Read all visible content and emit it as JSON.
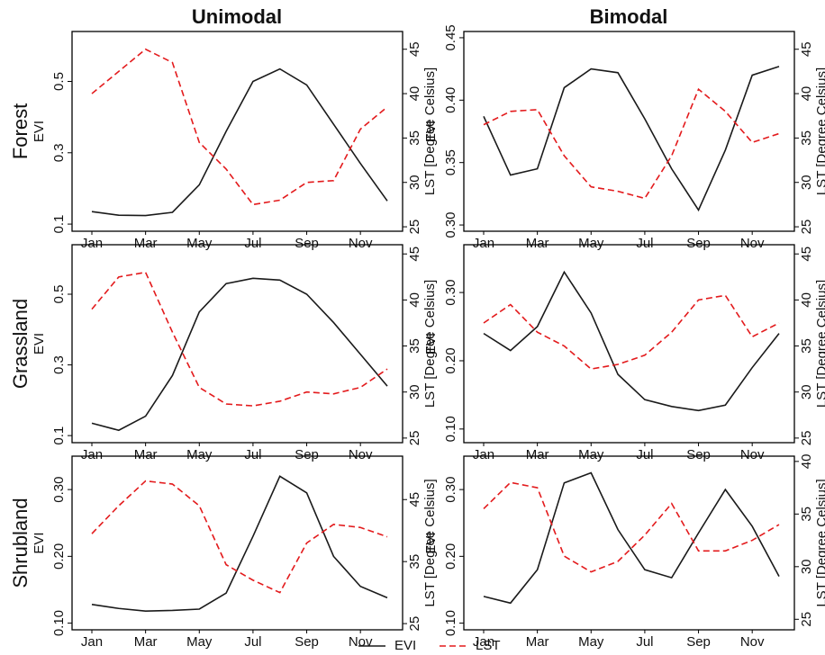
{
  "columns": [
    "Unimodal",
    "Bimodal"
  ],
  "rows": [
    "Forest",
    "Grassland",
    "Shrubland"
  ],
  "legend": [
    {
      "name": "EVI",
      "color": "#1a1a1a",
      "line_style": "solid"
    },
    {
      "name": "LST",
      "color": "#e31a1c",
      "line_style": "dashed"
    }
  ],
  "chart_data": [
    {
      "type": "line",
      "ylabel": "EVI",
      "y2label": "LST [Degree Celsius]",
      "categories": [
        "Jan",
        null,
        "Mar",
        null,
        "May",
        null,
        "Jul",
        null,
        "Sep",
        null,
        "Nov",
        null
      ],
      "ylim": [
        0.08,
        0.64
      ],
      "yticks": [
        0.1,
        0.3,
        0.5
      ],
      "y2lim": [
        24.5,
        47
      ],
      "y2ticks": [
        25,
        30,
        35,
        40,
        45
      ],
      "series": [
        {
          "color": "#1a1a1a",
          "line_style": "solid",
          "values": [
            0.135,
            0.125,
            0.124,
            0.133,
            0.21,
            0.36,
            0.5,
            0.535,
            0.49,
            0.38,
            0.27,
            0.165
          ]
        },
        {
          "color": "#e31a1c",
          "line_style": "dashed",
          "axis": "y2",
          "values": [
            40,
            42.5,
            45,
            43.5,
            34.5,
            31.5,
            27.5,
            28,
            30,
            30.2,
            36,
            38.5
          ]
        }
      ]
    },
    {
      "type": "line",
      "ylabel": "EVI",
      "y2label": "LST [Degree Celsius]",
      "categories": [
        "Jan",
        null,
        "Mar",
        null,
        "May",
        null,
        "Jul",
        null,
        "Sep",
        null,
        "Nov",
        null
      ],
      "ylim": [
        0.295,
        0.455
      ],
      "yticks": [
        {
          "value": 0.3,
          "label": "0.30"
        },
        0.35,
        {
          "value": 0.4,
          "label": "0.40"
        },
        0.45
      ],
      "y2lim": [
        24.5,
        47
      ],
      "y2ticks": [
        25,
        30,
        35,
        40,
        45
      ],
      "series": [
        {
          "color": "#1a1a1a",
          "line_style": "solid",
          "values": [
            0.387,
            0.34,
            0.345,
            0.41,
            0.425,
            0.422,
            0.385,
            0.345,
            0.312,
            0.36,
            0.42,
            0.427
          ]
        },
        {
          "color": "#e31a1c",
          "line_style": "dashed",
          "axis": "y2",
          "values": [
            36.5,
            38,
            38.2,
            33,
            29.5,
            29,
            28.2,
            33,
            40.5,
            38,
            34.5,
            35.5
          ]
        }
      ]
    },
    {
      "type": "line",
      "ylabel": "EVI",
      "y2label": "LST [Degree Celsius]",
      "categories": [
        "Jan",
        null,
        "Mar",
        null,
        "May",
        null,
        "Jul",
        null,
        "Sep",
        null,
        "Nov",
        null
      ],
      "ylim": [
        0.08,
        0.64
      ],
      "yticks": [
        0.1,
        0.3,
        0.5
      ],
      "y2lim": [
        24.5,
        46
      ],
      "y2ticks": [
        25,
        30,
        35,
        40,
        45
      ],
      "series": [
        {
          "color": "#1a1a1a",
          "line_style": "solid",
          "values": [
            0.135,
            0.115,
            0.155,
            0.27,
            0.45,
            0.53,
            0.545,
            0.54,
            0.5,
            0.42,
            0.33,
            0.24
          ]
        },
        {
          "color": "#e31a1c",
          "line_style": "dashed",
          "axis": "y2",
          "values": [
            39,
            42.5,
            43,
            36.5,
            30.5,
            28.7,
            28.5,
            29,
            30,
            29.8,
            30.5,
            32.5
          ]
        }
      ]
    },
    {
      "type": "line",
      "ylabel": "EVI",
      "y2label": "LST [Degree Celsius]",
      "categories": [
        "Jan",
        null,
        "Mar",
        null,
        "May",
        null,
        "Jul",
        null,
        "Sep",
        null,
        "Nov",
        null
      ],
      "ylim": [
        0.08,
        0.37
      ],
      "yticks": [
        {
          "value": 0.1,
          "label": "0.10"
        },
        {
          "value": 0.2,
          "label": "0.20"
        },
        {
          "value": 0.3,
          "label": "0.30"
        }
      ],
      "y2lim": [
        24.5,
        46
      ],
      "y2ticks": [
        25,
        30,
        35,
        40,
        45
      ],
      "series": [
        {
          "color": "#1a1a1a",
          "line_style": "solid",
          "values": [
            0.24,
            0.215,
            0.25,
            0.33,
            0.27,
            0.18,
            0.143,
            0.133,
            0.127,
            0.135,
            0.19,
            0.24
          ]
        },
        {
          "color": "#e31a1c",
          "line_style": "dashed",
          "axis": "y2",
          "values": [
            37.5,
            39.5,
            36.5,
            35,
            32.5,
            33,
            34,
            36.5,
            40,
            40.5,
            36,
            37.5
          ]
        }
      ]
    },
    {
      "type": "line",
      "ylabel": "EVI",
      "y2label": "LST [Degree Celsius]",
      "categories": [
        "Jan",
        null,
        "Mar",
        null,
        "May",
        null,
        "Jul",
        null,
        "Sep",
        null,
        "Nov",
        null
      ],
      "ylim": [
        0.09,
        0.35
      ],
      "yticks": [
        {
          "value": 0.1,
          "label": "0.10"
        },
        {
          "value": 0.2,
          "label": "0.20"
        },
        {
          "value": 0.3,
          "label": "0.30"
        }
      ],
      "y2lim": [
        24,
        52
      ],
      "y2ticks": [
        25,
        35,
        45
      ],
      "series": [
        {
          "color": "#1a1a1a",
          "line_style": "solid",
          "values": [
            0.128,
            0.122,
            0.118,
            0.119,
            0.121,
            0.145,
            0.23,
            0.32,
            0.295,
            0.2,
            0.155,
            0.138
          ]
        },
        {
          "color": "#e31a1c",
          "line_style": "dashed",
          "axis": "y2",
          "values": [
            39.5,
            44,
            48,
            47.5,
            44,
            34.5,
            32,
            30,
            38,
            41,
            40.5,
            39
          ]
        }
      ]
    },
    {
      "type": "line",
      "ylabel": "EVI",
      "y2label": "LST [Degree Celsius]",
      "categories": [
        "Jan",
        null,
        "Mar",
        null,
        "May",
        null,
        "Jul",
        null,
        "Sep",
        null,
        "Nov",
        null
      ],
      "ylim": [
        0.09,
        0.35
      ],
      "yticks": [
        {
          "value": 0.1,
          "label": "0.10"
        },
        {
          "value": 0.2,
          "label": "0.20"
        },
        {
          "value": 0.3,
          "label": "0.30"
        }
      ],
      "y2lim": [
        24,
        40.5
      ],
      "y2ticks": [
        25,
        30,
        35,
        40
      ],
      "series": [
        {
          "color": "#1a1a1a",
          "line_style": "solid",
          "values": [
            0.14,
            0.13,
            0.18,
            0.31,
            0.325,
            0.24,
            0.18,
            0.168,
            0.235,
            0.3,
            0.245,
            0.17
          ]
        },
        {
          "color": "#e31a1c",
          "line_style": "dashed",
          "axis": "y2",
          "values": [
            35.5,
            38,
            37.5,
            31,
            29.5,
            30.5,
            33,
            36,
            31.5,
            31.5,
            32.5,
            34
          ]
        }
      ]
    }
  ]
}
